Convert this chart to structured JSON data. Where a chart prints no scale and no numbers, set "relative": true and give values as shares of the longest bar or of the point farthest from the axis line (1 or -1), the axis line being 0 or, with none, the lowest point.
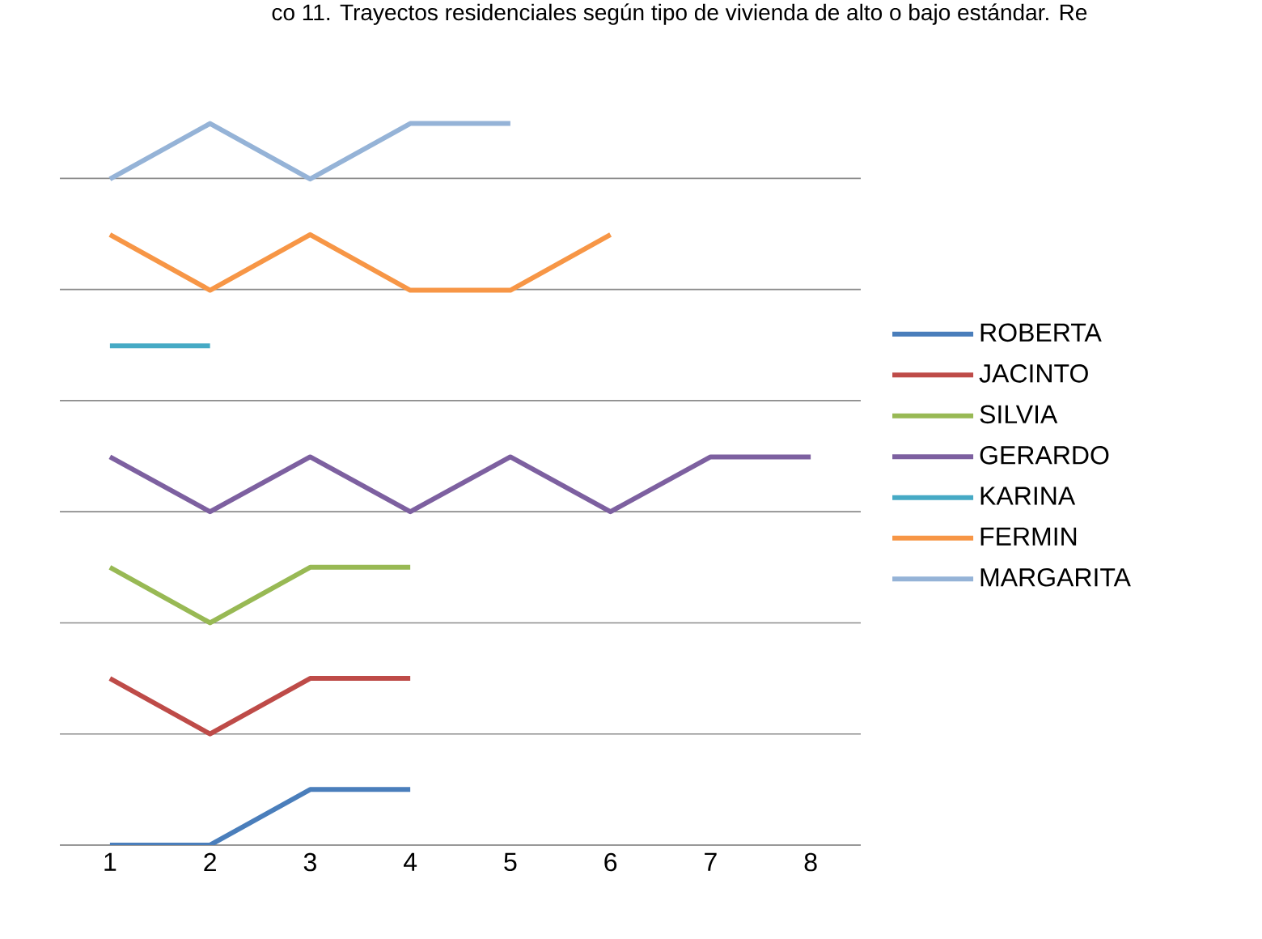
{
  "chart_data": {
    "type": "line",
    "title": "co 11. Trayectos residenciales según tipo de vivienda de alto o bajo estándar. Re",
    "categories": [
      "1",
      "2",
      "3",
      "4",
      "5",
      "6",
      "7",
      "8"
    ],
    "relative": true,
    "grid": "y",
    "legend": "right",
    "marker": "none",
    "line_style": "solid",
    "series": [
      {
        "name": "ROBERTA",
        "color": "#4a7ebb",
        "values": [
          0,
          0,
          0.077,
          0.077,
          null,
          null,
          null,
          null
        ]
      },
      {
        "name": "JACINTO",
        "color": "#be4b48",
        "values": [
          0.231,
          0.154,
          0.231,
          0.231,
          null,
          null,
          null,
          null
        ]
      },
      {
        "name": "SILVIA",
        "color": "#98b954",
        "values": [
          0.385,
          0.308,
          0.385,
          0.385,
          null,
          null,
          null,
          null
        ]
      },
      {
        "name": "GERARDO",
        "color": "#7d60a0",
        "values": [
          0.538,
          0.462,
          0.538,
          0.462,
          0.538,
          0.462,
          0.538,
          0.538
        ]
      },
      {
        "name": "KARINA",
        "color": "#46aac5",
        "values": [
          0.692,
          0.692,
          null,
          null,
          null,
          null,
          null,
          null
        ]
      },
      {
        "name": "FERMIN",
        "color": "#f79646",
        "values": [
          0.846,
          0.769,
          0.846,
          0.769,
          0.769,
          0.846,
          null,
          null
        ]
      },
      {
        "name": "MARGARITA",
        "color": "#95b3d7",
        "values": [
          0.923,
          1,
          0.923,
          1,
          1,
          null,
          null,
          null
        ]
      }
    ]
  }
}
